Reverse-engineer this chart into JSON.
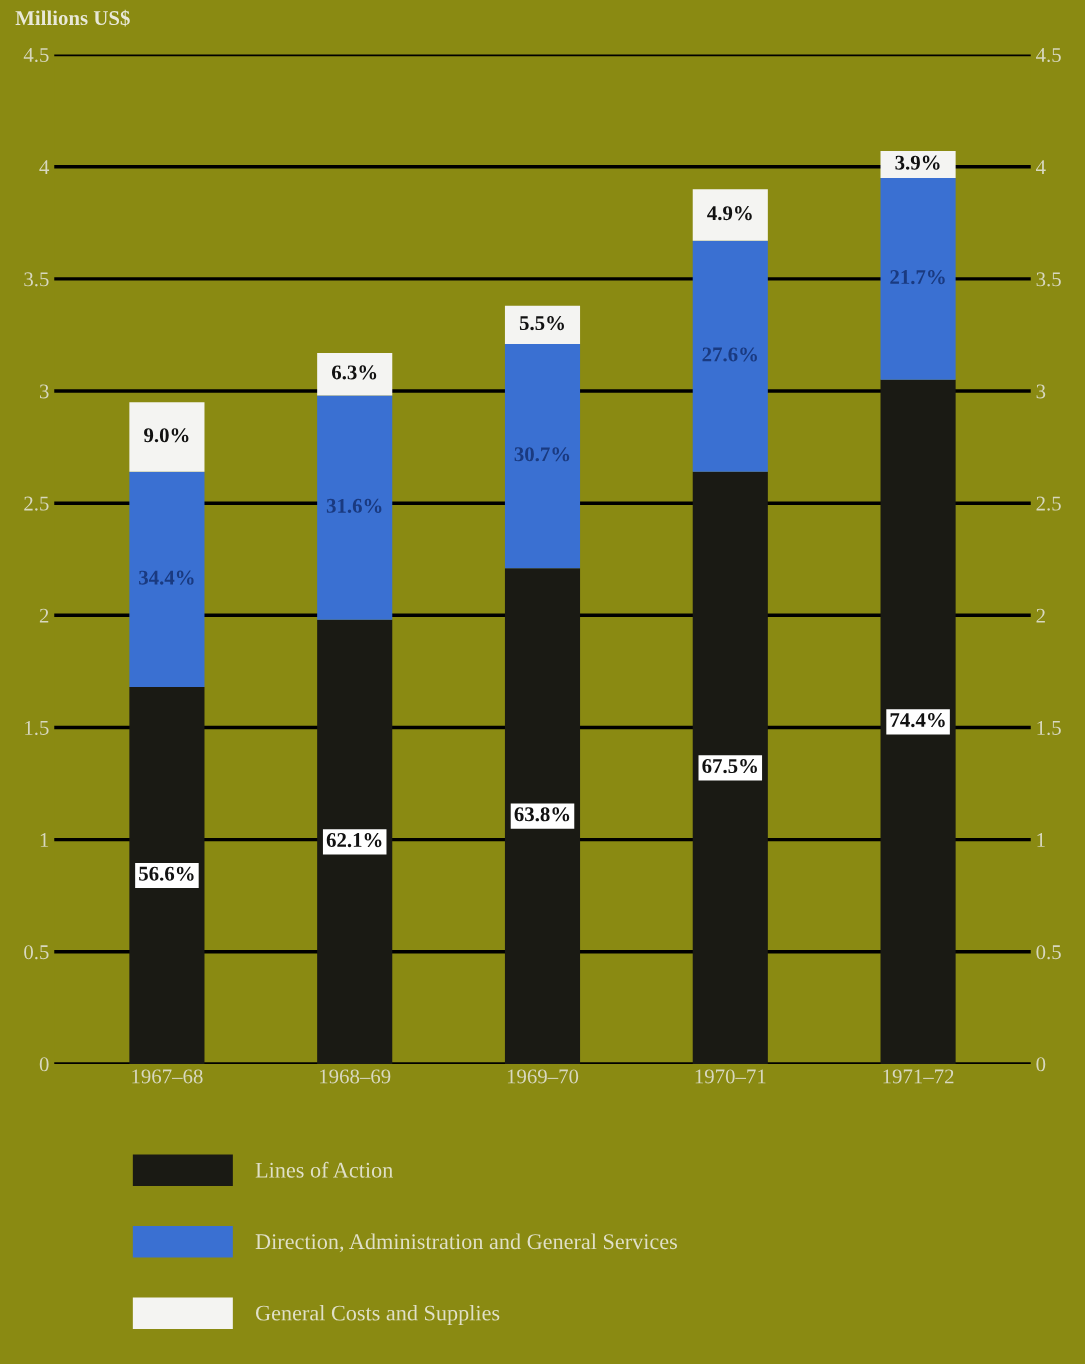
{
  "chart_data": {
    "type": "bar",
    "stacked": true,
    "ylabel": "Millions US$",
    "categories": [
      "1967–68",
      "1968–69",
      "1969–70",
      "1970–71",
      "1971–72"
    ],
    "series": [
      {
        "name": "Lines of Action",
        "color": "#1a1a14",
        "values": [
          1.68,
          1.98,
          2.21,
          2.64,
          3.05
        ]
      },
      {
        "name": "Direction, Administration and General Services",
        "color": "#3a70d2",
        "values": [
          0.96,
          1.0,
          1.0,
          1.03,
          0.9
        ]
      },
      {
        "name": "General Costs and Supplies",
        "color": "#f4f4f2",
        "values": [
          0.31,
          0.19,
          0.17,
          0.23,
          0.12
        ]
      }
    ],
    "annotations": [
      "56.6%",
      "62.1%",
      "63.8%",
      "67.5%",
      "74.4%",
      "34.4%",
      "31.6%",
      "30.7%",
      "27.6%",
      "21.7%",
      "9.0%",
      "6.3%",
      "5.5%",
      "4.9%",
      "3.9%"
    ],
    "ylim": [
      0,
      4.5
    ],
    "yticks": [
      0,
      0.5,
      1,
      1.5,
      2,
      2.5,
      3,
      3.5,
      4,
      4.5
    ],
    "y2lim": [
      0,
      4.5
    ],
    "y2ticks": [
      0,
      0.5,
      1,
      1.5,
      2,
      2.5,
      3,
      3.5,
      4,
      4.5
    ],
    "grid": "y",
    "legend": "bottom"
  }
}
